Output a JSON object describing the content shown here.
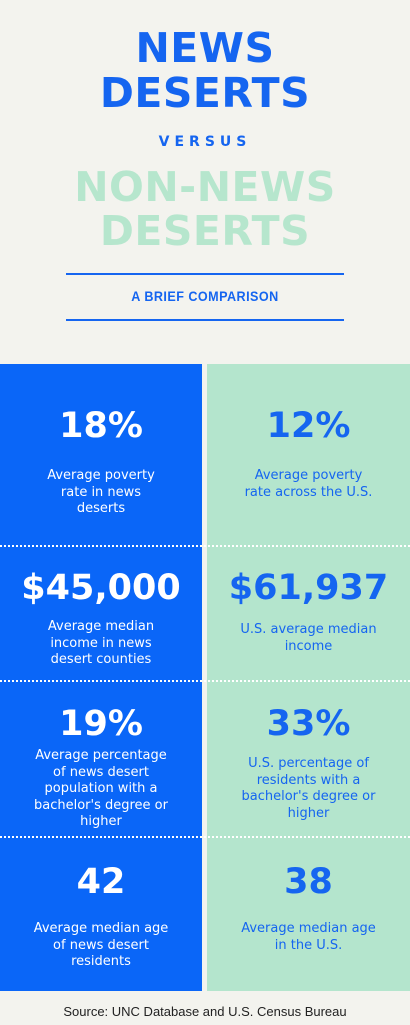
{
  "header": {
    "title_line1": "NEWS",
    "title_line2": "DESERTS",
    "versus": "VERSUS",
    "sub_line1": "NON-NEWS",
    "sub_line2": "DESERTS",
    "subtitle": "A BRIEF COMPARISON"
  },
  "colors": {
    "blue": "#0a66f8",
    "title_blue": "#1565f0",
    "mint": "#b4e5cd",
    "light_mint_text": "#b6e6cd",
    "background": "#f3f3ee"
  },
  "rows": [
    {
      "left_value": "18%",
      "left_desc": [
        "Average poverty",
        "rate in news",
        "deserts"
      ],
      "right_value": "12%",
      "right_desc": [
        "Average poverty",
        "rate across the U.S."
      ]
    },
    {
      "left_value": "$45,000",
      "left_desc": [
        "Average median",
        "income in news",
        "desert counties"
      ],
      "right_value": "$61,937",
      "right_desc": [
        "U.S. average median",
        "income"
      ]
    },
    {
      "left_value": "19%",
      "left_desc": [
        "Average percentage",
        "of news desert",
        "population with a",
        "bachelor's degree or",
        "higher"
      ],
      "right_value": "33%",
      "right_desc": [
        "U.S. percentage of",
        "residents with a",
        "bachelor's degree or",
        "higher"
      ]
    },
    {
      "left_value": "42",
      "left_desc": [
        "Average median age",
        "of news desert",
        "residents"
      ],
      "right_value": "38",
      "right_desc": [
        "Average median age",
        "in the U.S."
      ]
    }
  ],
  "source": "Source: UNC Database and U.S. Census Bureau"
}
